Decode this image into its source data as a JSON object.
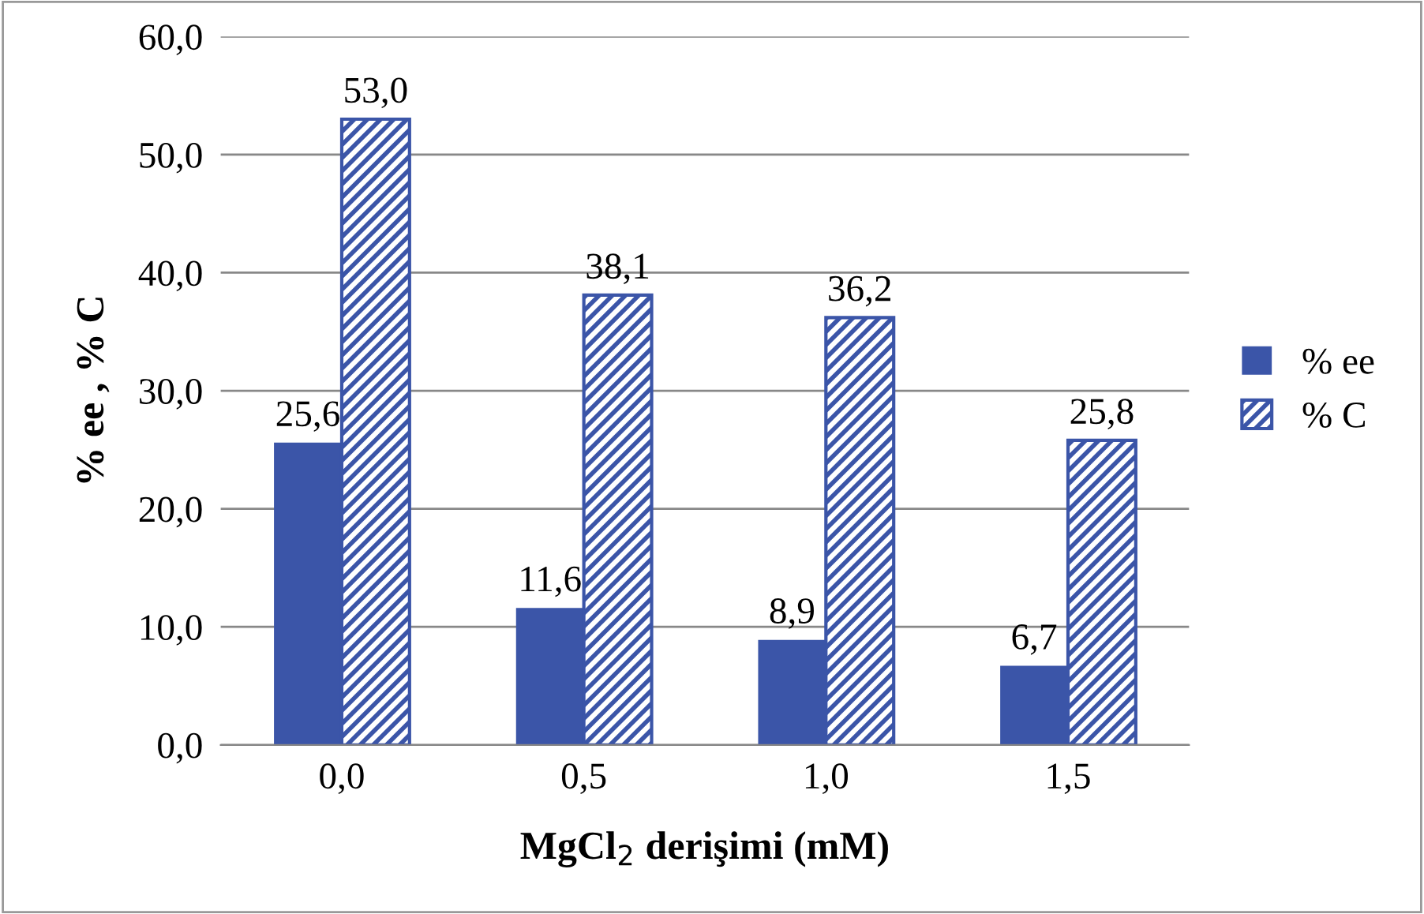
{
  "chart_data": {
    "type": "bar",
    "categories": [
      "0,0",
      "0,5",
      "1,0",
      "1,5"
    ],
    "xlabel": "MgCl$_{2}$ derişimi (mM)",
    "ylabel": "% ee , % C",
    "series": [
      {
        "name": "% ee",
        "color": "#3b55a8",
        "values": [
          25.6,
          11.6,
          8.9,
          6.7
        ],
        "value_labels": [
          "25,6",
          "11,6",
          "8,9",
          "6,7"
        ]
      },
      {
        "name": "% C",
        "color": "#3b55a8",
        "values": [
          53.0,
          38.1,
          36.2,
          25.8
        ],
        "value_labels": [
          "53,0",
          "38,1",
          "36,2",
          "25,8"
        ]
      }
    ],
    "ylim": [
      0,
      60
    ],
    "yticks": [
      {
        "value": 0,
        "label": "0,0"
      },
      {
        "value": 10,
        "label": "10,0"
      },
      {
        "value": 20,
        "label": "20,0"
      },
      {
        "value": 30,
        "label": "30,0"
      },
      {
        "value": 40,
        "label": "40,0"
      },
      {
        "value": 50,
        "label": "50,0"
      },
      {
        "value": 60,
        "label": "60,0"
      }
    ],
    "grid": "y",
    "legend": "right"
  }
}
